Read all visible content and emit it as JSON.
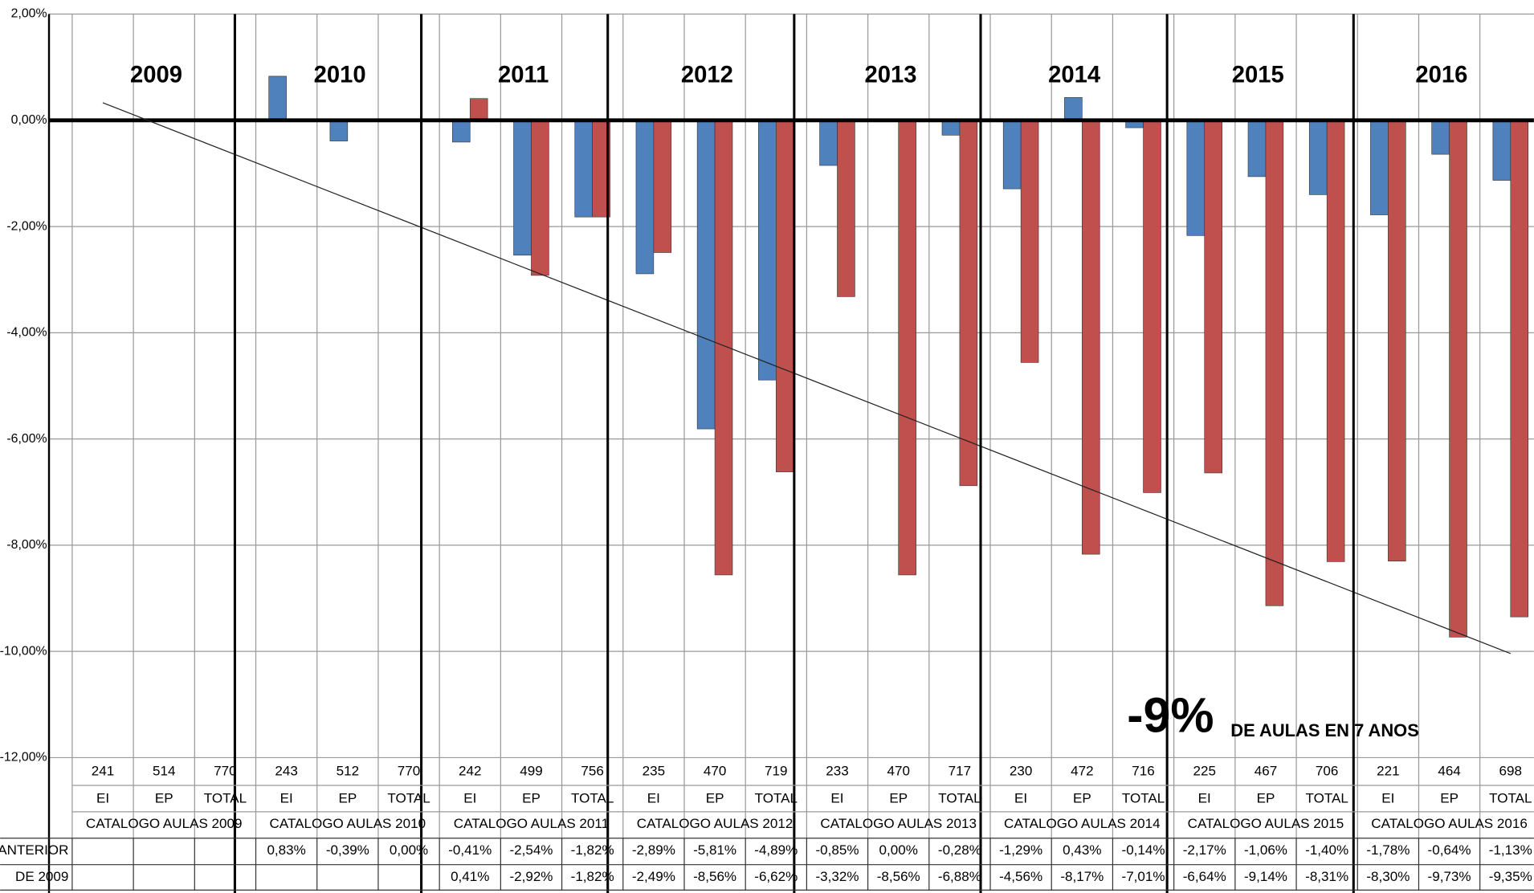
{
  "chart_data": {
    "type": "bar",
    "years": [
      "2009",
      "2010",
      "2011",
      "2012",
      "2013",
      "2014",
      "2015",
      "2016"
    ],
    "groups": [
      "CATALOGO AULAS 2009",
      "CATALOGO AULAS 2010",
      "CATALOGO AULAS 2011",
      "CATALOGO AULAS 2012",
      "CATALOGO AULAS 2013",
      "CATALOGO AULAS 2014",
      "CATALOGO AULAS 2015",
      "CATALOGO AULAS 2016"
    ],
    "categories": [
      "EI",
      "EP",
      "TOTAL",
      "EI",
      "EP",
      "TOTAL",
      "EI",
      "EP",
      "TOTAL",
      "EI",
      "EP",
      "TOTAL",
      "EI",
      "EP",
      "TOTAL",
      "EI",
      "EP",
      "TOTAL",
      "EI",
      "EP",
      "TOTAL",
      "EI",
      "EP",
      "TOTAL"
    ],
    "counts": [
      241,
      514,
      770,
      243,
      512,
      770,
      242,
      499,
      756,
      235,
      470,
      719,
      233,
      470,
      717,
      230,
      472,
      716,
      225,
      467,
      706,
      221,
      464,
      698
    ],
    "series": [
      {
        "name": "O ANTERIOR",
        "color": "#4f81bd",
        "values": [
          null,
          null,
          null,
          0.83,
          -0.39,
          0.0,
          -0.41,
          -2.54,
          -1.82,
          -2.89,
          -5.81,
          -4.89,
          -0.85,
          0.0,
          -0.28,
          -1.29,
          0.43,
          -0.14,
          -2.17,
          -1.06,
          -1.4,
          -1.78,
          -0.64,
          -1.13
        ],
        "value_labels": [
          null,
          null,
          null,
          "0,83%",
          "-0,39%",
          "0,00%",
          "-0,41%",
          "-2,54%",
          "-1,82%",
          "-2,89%",
          "-5,81%",
          "-4,89%",
          "-0,85%",
          "0,00%",
          "-0,28%",
          "-1,29%",
          "0,43%",
          "-0,14%",
          "-2,17%",
          "-1,06%",
          "-1,40%",
          "-1,78%",
          "-0,64%",
          "-1,13%"
        ]
      },
      {
        "name": "DE 2009",
        "color": "#c0504d",
        "values": [
          null,
          null,
          null,
          null,
          null,
          null,
          0.41,
          -2.92,
          -1.82,
          -2.49,
          -8.56,
          -6.62,
          -3.32,
          -8.56,
          -6.88,
          -4.56,
          -8.17,
          -7.01,
          -6.64,
          -9.14,
          -8.31,
          -8.3,
          -9.73,
          -9.35
        ],
        "value_labels": [
          null,
          null,
          null,
          null,
          null,
          null,
          "0,41%",
          "-2,92%",
          "-1,82%",
          "-2,49%",
          "-8,56%",
          "-6,62%",
          "-3,32%",
          "-8,56%",
          "-6,88%",
          "-4,56%",
          "-8,17%",
          "-7,01%",
          "-6,64%",
          "-9,14%",
          "-8,31%",
          "-8,30%",
          "-9,73%",
          "-9,35%"
        ]
      }
    ],
    "trendline": [
      0.33,
      -10.04
    ],
    "ylim": [
      -12,
      2
    ],
    "yticks": [
      {
        "value": 2,
        "label": "2,00%"
      },
      {
        "value": 0,
        "label": "0,00%"
      },
      {
        "value": -2,
        "label": "-2,00%"
      },
      {
        "value": -4,
        "label": "-4,00%"
      },
      {
        "value": -6,
        "label": "-6,00%"
      },
      {
        "value": -8,
        "label": "-8,00%"
      },
      {
        "value": -10,
        "label": "-10,00%"
      },
      {
        "value": -12,
        "label": "-12,00%"
      }
    ],
    "grid": true,
    "annotation": {
      "big": "-9%",
      "small": "DE AULAS EN 7 ANOS",
      "color": "#e46c0a"
    }
  }
}
